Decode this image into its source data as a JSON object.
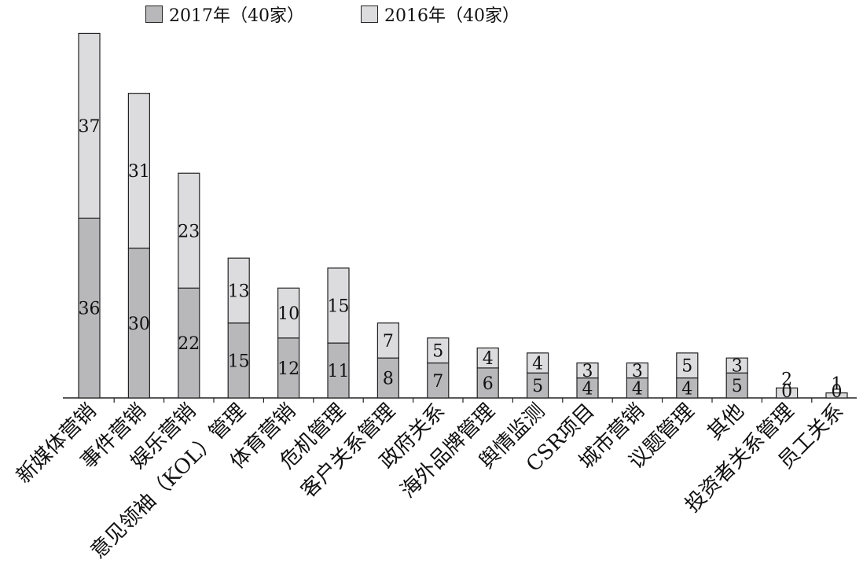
{
  "chart_data": {
    "type": "bar",
    "stacked": true,
    "categories": [
      "新媒体营销",
      "事件营销",
      "娱乐营销",
      "意见领袖（KOL）管理",
      "体育营销",
      "危机管理",
      "客户关系管理",
      "政府关系",
      "海外品牌管理",
      "舆情监测",
      "CSR项目",
      "城市营销",
      "议题管理",
      "其他",
      "投资者关系管理",
      "员工关系"
    ],
    "series": [
      {
        "name": "2017年（40家）",
        "color": "#b8b8bb",
        "values": [
          36,
          30,
          22,
          15,
          12,
          11,
          8,
          7,
          6,
          5,
          4,
          4,
          4,
          5,
          0,
          0
        ]
      },
      {
        "name": "2016年（40家）",
        "color": "#dcdcde",
        "values": [
          37,
          31,
          23,
          13,
          10,
          15,
          7,
          5,
          4,
          4,
          3,
          3,
          5,
          3,
          2,
          1
        ]
      }
    ],
    "legend_position": "top",
    "grid": false,
    "ylim": [
      0,
      73
    ]
  }
}
